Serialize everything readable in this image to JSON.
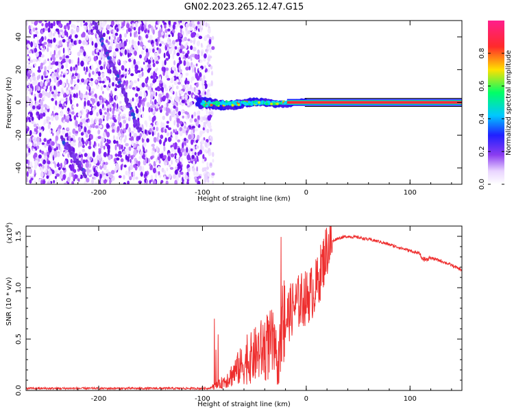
{
  "title": "GN02.2023.265.12.47.G15",
  "spectrogram": {
    "xlabel": "Height of straight line (km)",
    "ylabel": "Frequency (Hz)",
    "xlim": [
      -270,
      150
    ],
    "ylim": [
      -50,
      50
    ],
    "xticks": [
      -200,
      -100,
      0,
      100
    ],
    "yticks": [
      -40,
      -20,
      0,
      20,
      40
    ],
    "signal_line_frequency_hz": 0,
    "noise_region_x": [
      -270,
      -95
    ],
    "signal_trace_x_start": -105
  },
  "colorbar": {
    "label": "Normalized spectral amplitude",
    "range": [
      0,
      1
    ],
    "ticks": [
      "0.0",
      "0.2",
      "0.4",
      "0.6",
      "0.8"
    ],
    "colors": [
      "#ffffff",
      "#d8b4fe",
      "#7c3aed",
      "#1d1dff",
      "#00c8ff",
      "#00ff66",
      "#ffd400",
      "#ff2a2a",
      "#ff1e8c"
    ]
  },
  "chart_data": {
    "type": "line",
    "title": "GN02.2023.265.12.47.G15",
    "xlabel": "Height of straight line (km)",
    "ylabel": "SNR (10 * v/v)",
    "yscale_label": "(x10",
    "yscale_exp": "4",
    "xlim": [
      -270,
      150
    ],
    "ylim": [
      0,
      1.6
    ],
    "xticks": [
      -200,
      -100,
      0,
      100
    ],
    "yticks": [
      "0.0",
      "0.5",
      "1.0",
      "1.5"
    ],
    "line_color": "#ee2e2e",
    "series": [
      {
        "x": [
          -270,
          -200,
          -120,
          -95,
          -85,
          -75,
          -65,
          -55,
          -45,
          -38,
          -32,
          -28,
          -22,
          -18,
          -12,
          -5,
          0,
          5,
          10,
          15,
          20,
          25,
          30,
          40,
          50,
          60,
          70,
          80,
          90,
          100,
          110,
          115,
          120,
          130,
          140,
          150
        ],
        "y": [
          0.02,
          0.02,
          0.02,
          0.02,
          0.05,
          0.12,
          0.22,
          0.3,
          0.38,
          0.42,
          0.45,
          0.2,
          0.62,
          0.72,
          0.82,
          0.88,
          0.9,
          0.95,
          1.02,
          1.2,
          1.38,
          1.45,
          1.48,
          1.5,
          1.49,
          1.47,
          1.45,
          1.42,
          1.39,
          1.36,
          1.33,
          1.3,
          1.29,
          1.26,
          1.22,
          1.17
        ]
      }
    ]
  }
}
